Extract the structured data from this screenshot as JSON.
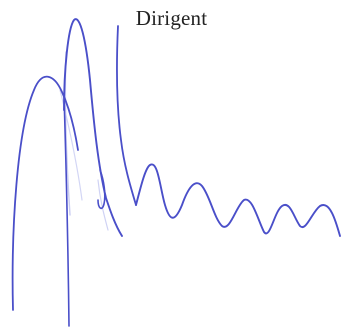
{
  "caption": "Dirigent",
  "colors": {
    "ink": "#4a4fc9",
    "ink_faint": "#b9bdf0",
    "background": "#ffffff",
    "text": "#222222"
  }
}
